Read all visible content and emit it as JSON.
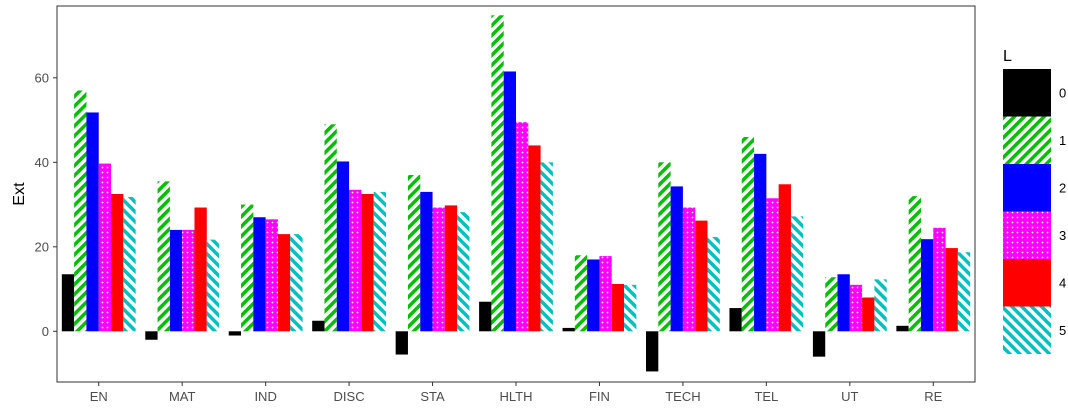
{
  "chart_data": {
    "type": "bar",
    "ylabel": "Ext",
    "xlabel": "",
    "ylim": [
      -12,
      77
    ],
    "yticks": [
      0,
      20,
      40,
      60
    ],
    "grid": false,
    "legend": {
      "title": "L",
      "position": "right"
    },
    "categories": [
      "EN",
      "MAT",
      "IND",
      "DISC",
      "STA",
      "HLTH",
      "FIN",
      "TECH",
      "TEL",
      "UT",
      "RE"
    ],
    "series": [
      {
        "name": "0",
        "color": "#000000",
        "pattern": "solid",
        "values": [
          13.5,
          -2,
          -1,
          2.5,
          -5.5,
          7,
          0.8,
          -9.5,
          5.5,
          -6,
          1.3
        ]
      },
      {
        "name": "1",
        "color": "#00c000",
        "pattern": "stripes",
        "values": [
          57,
          35.5,
          30,
          49,
          37,
          74.8,
          18,
          40,
          46,
          12.8,
          32
        ]
      },
      {
        "name": "2",
        "color": "#0000ff",
        "pattern": "solid",
        "values": [
          51.8,
          24,
          27,
          40.2,
          33,
          61.5,
          17,
          34.3,
          42,
          13.5,
          21.8
        ]
      },
      {
        "name": "3",
        "color": "#ff00ff",
        "pattern": "dots",
        "values": [
          39.7,
          24,
          26.5,
          33.5,
          29.3,
          49.5,
          17.8,
          29.3,
          31.5,
          11,
          24.5
        ]
      },
      {
        "name": "4",
        "color": "#ff0000",
        "pattern": "solid",
        "values": [
          32.5,
          29.3,
          23,
          32.5,
          29.8,
          44,
          11.2,
          26.2,
          34.8,
          8,
          19.7
        ]
      },
      {
        "name": "5",
        "color": "#00c0c0",
        "pattern": "stripes",
        "values": [
          31.8,
          21.7,
          23,
          33,
          28.2,
          40,
          11,
          22.3,
          27.2,
          12.3,
          18.7
        ]
      }
    ]
  }
}
